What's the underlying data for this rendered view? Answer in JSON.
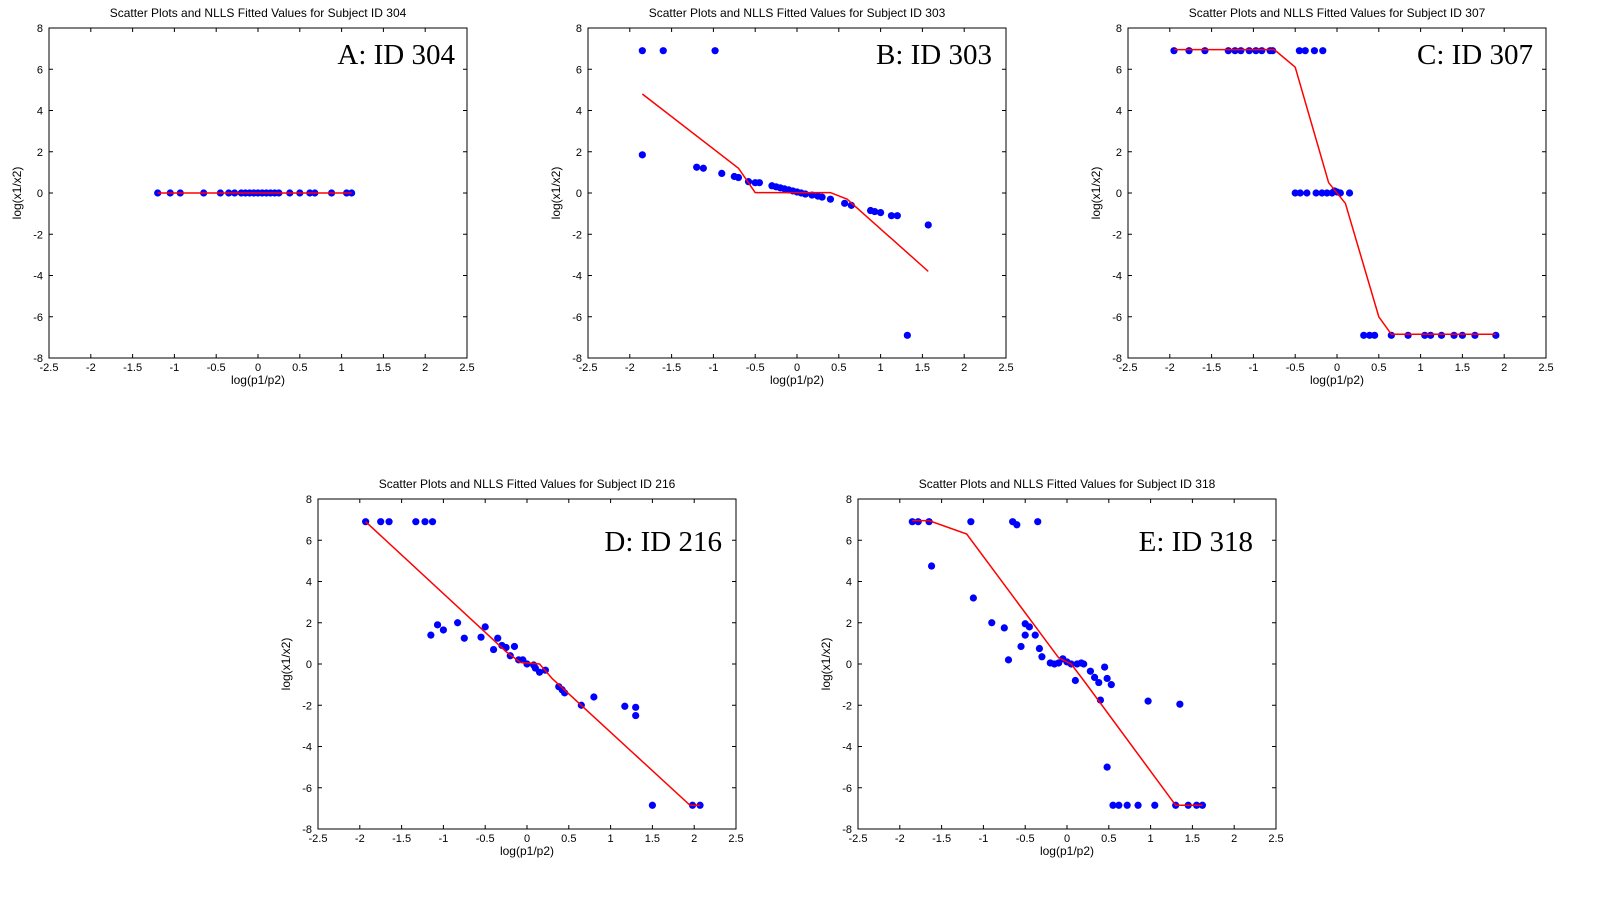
{
  "colors": {
    "points": "#0000ff",
    "fit_line": "#ff0000",
    "axes": "#000000",
    "background": "#ffffff"
  },
  "chart_data": [
    {
      "type": "scatter",
      "title": "Scatter Plots and NLLS Fitted Values for Subject ID 304",
      "panel_label": "A: ID 304",
      "xlabel": "log(p1/p2)",
      "ylabel": "log(x1/x2)",
      "xlim": [
        -2.5,
        2.5
      ],
      "ylim": [
        -8,
        8
      ],
      "xticks": [
        "-2.5",
        "-2",
        "-1.5",
        "-1",
        "-0.5",
        "0",
        "0.5",
        "1",
        "1.5",
        "2",
        "2.5"
      ],
      "yticks": [
        "-8",
        "-6",
        "-4",
        "-2",
        "0",
        "2",
        "4",
        "6",
        "8"
      ],
      "points": [
        [
          -1.2,
          0
        ],
        [
          -1.05,
          0
        ],
        [
          -0.93,
          0
        ],
        [
          -0.65,
          0
        ],
        [
          -0.45,
          0
        ],
        [
          -0.35,
          0
        ],
        [
          -0.28,
          0
        ],
        [
          -0.2,
          0
        ],
        [
          -0.15,
          0
        ],
        [
          -0.1,
          0
        ],
        [
          -0.05,
          0
        ],
        [
          0,
          0
        ],
        [
          0.05,
          0
        ],
        [
          0.1,
          0
        ],
        [
          0.15,
          0
        ],
        [
          0.2,
          0
        ],
        [
          0.25,
          0
        ],
        [
          0.38,
          0
        ],
        [
          0.5,
          0
        ],
        [
          0.62,
          0
        ],
        [
          0.68,
          0
        ],
        [
          0.88,
          0
        ],
        [
          1.06,
          0
        ],
        [
          1.12,
          0
        ]
      ],
      "fit_line": [
        [
          -1.2,
          0
        ],
        [
          1.12,
          0
        ]
      ]
    },
    {
      "type": "scatter",
      "title": "Scatter Plots and NLLS Fitted Values for Subject ID 303",
      "panel_label": "B: ID 303",
      "xlabel": "log(p1/p2)",
      "ylabel": "log(x1/x2)",
      "xlim": [
        -2.5,
        2.5
      ],
      "ylim": [
        -8,
        8
      ],
      "xticks": [
        "-2.5",
        "-2",
        "-1.5",
        "-1",
        "-0.5",
        "0",
        "0.5",
        "1",
        "1.5",
        "2",
        "2.5"
      ],
      "yticks": [
        "-8",
        "-6",
        "-4",
        "-2",
        "0",
        "2",
        "4",
        "6",
        "8"
      ],
      "points": [
        [
          -1.85,
          6.9
        ],
        [
          -1.6,
          6.9
        ],
        [
          -0.98,
          6.9
        ],
        [
          -1.85,
          1.85
        ],
        [
          -1.2,
          1.25
        ],
        [
          -1.12,
          1.2
        ],
        [
          -0.9,
          0.95
        ],
        [
          -0.75,
          0.8
        ],
        [
          -0.7,
          0.75
        ],
        [
          -0.58,
          0.55
        ],
        [
          -0.5,
          0.5
        ],
        [
          -0.45,
          0.5
        ],
        [
          -0.3,
          0.35
        ],
        [
          -0.25,
          0.3
        ],
        [
          -0.2,
          0.25
        ],
        [
          -0.15,
          0.2
        ],
        [
          -0.1,
          0.15
        ],
        [
          -0.05,
          0.1
        ],
        [
          0,
          0.05
        ],
        [
          0.05,
          0.0
        ],
        [
          0.1,
          -0.05
        ],
        [
          0.18,
          -0.1
        ],
        [
          0.25,
          -0.15
        ],
        [
          0.3,
          -0.2
        ],
        [
          0.4,
          -0.3
        ],
        [
          0.57,
          -0.5
        ],
        [
          0.65,
          -0.6
        ],
        [
          0.88,
          -0.85
        ],
        [
          0.93,
          -0.9
        ],
        [
          1.0,
          -0.95
        ],
        [
          1.13,
          -1.1
        ],
        [
          1.2,
          -1.1
        ],
        [
          1.32,
          -6.9
        ],
        [
          1.57,
          -1.55
        ]
      ],
      "fit_line": [
        [
          -1.85,
          4.8
        ],
        [
          -0.7,
          1.2
        ],
        [
          -0.5,
          0.02
        ],
        [
          0.4,
          0.02
        ],
        [
          0.6,
          -0.3
        ],
        [
          1.57,
          -3.8
        ]
      ]
    },
    {
      "type": "scatter",
      "title": "Scatter Plots and NLLS Fitted Values for Subject ID 307",
      "panel_label": "C: ID 307",
      "xlabel": "log(p1/p2)",
      "ylabel": "log(x1/x2)",
      "xlim": [
        -2.5,
        2.5
      ],
      "ylim": [
        -8,
        8
      ],
      "xticks": [
        "-2.5",
        "-2",
        "-1.5",
        "-1",
        "-0.5",
        "0",
        "0.5",
        "1",
        "1.5",
        "2",
        "2.5"
      ],
      "yticks": [
        "-8",
        "-6",
        "-4",
        "-2",
        "0",
        "2",
        "4",
        "6",
        "8"
      ],
      "points": [
        [
          -1.95,
          6.9
        ],
        [
          -1.77,
          6.9
        ],
        [
          -1.58,
          6.9
        ],
        [
          -1.3,
          6.9
        ],
        [
          -1.22,
          6.9
        ],
        [
          -1.15,
          6.9
        ],
        [
          -1.05,
          6.9
        ],
        [
          -0.97,
          6.9
        ],
        [
          -0.9,
          6.9
        ],
        [
          -0.8,
          6.9
        ],
        [
          -0.77,
          6.9
        ],
        [
          -0.45,
          6.9
        ],
        [
          -0.38,
          6.9
        ],
        [
          -0.27,
          6.9
        ],
        [
          -0.17,
          6.9
        ],
        [
          -0.5,
          0
        ],
        [
          -0.44,
          0
        ],
        [
          -0.36,
          0
        ],
        [
          -0.25,
          0
        ],
        [
          -0.18,
          0
        ],
        [
          -0.12,
          0
        ],
        [
          -0.06,
          0
        ],
        [
          -0.03,
          0.1
        ],
        [
          0,
          0.05
        ],
        [
          0.04,
          0
        ],
        [
          0.15,
          0
        ],
        [
          0.32,
          -6.9
        ],
        [
          0.39,
          -6.9
        ],
        [
          0.45,
          -6.9
        ],
        [
          0.65,
          -6.9
        ],
        [
          0.85,
          -6.9
        ],
        [
          1.05,
          -6.9
        ],
        [
          1.12,
          -6.9
        ],
        [
          1.25,
          -6.9
        ],
        [
          1.4,
          -6.9
        ],
        [
          1.5,
          -6.9
        ],
        [
          1.65,
          -6.9
        ],
        [
          1.9,
          -6.9
        ]
      ],
      "fit_line": [
        [
          -1.95,
          6.95
        ],
        [
          -0.75,
          6.95
        ],
        [
          -0.5,
          6.1
        ],
        [
          -0.1,
          0.5
        ],
        [
          0.1,
          -0.5
        ],
        [
          0.5,
          -6.0
        ],
        [
          0.65,
          -6.85
        ],
        [
          1.9,
          -6.85
        ]
      ]
    },
    {
      "type": "scatter",
      "title": "Scatter Plots and NLLS Fitted Values for Subject ID 216",
      "panel_label": "D: ID 216",
      "xlabel": "log(p1/p2)",
      "ylabel": "log(x1/x2)",
      "xlim": [
        -2.5,
        2.5
      ],
      "ylim": [
        -8,
        8
      ],
      "xticks": [
        "-2.5",
        "-2",
        "-1.5",
        "-1",
        "-0.5",
        "0",
        "0.5",
        "1",
        "1.5",
        "2",
        "2.5"
      ],
      "yticks": [
        "-8",
        "-6",
        "-4",
        "-2",
        "0",
        "2",
        "4",
        "6",
        "8"
      ],
      "points": [
        [
          -1.93,
          6.9
        ],
        [
          -1.75,
          6.9
        ],
        [
          -1.65,
          6.9
        ],
        [
          -1.33,
          6.9
        ],
        [
          -1.22,
          6.9
        ],
        [
          -1.13,
          6.9
        ],
        [
          -1.15,
          1.4
        ],
        [
          -1.07,
          1.9
        ],
        [
          -1.0,
          1.65
        ],
        [
          -0.83,
          2.0
        ],
        [
          -0.75,
          1.25
        ],
        [
          -0.55,
          1.3
        ],
        [
          -0.5,
          1.8
        ],
        [
          -0.4,
          0.7
        ],
        [
          -0.35,
          1.25
        ],
        [
          -0.3,
          0.9
        ],
        [
          -0.25,
          0.8
        ],
        [
          -0.2,
          0.4
        ],
        [
          -0.15,
          0.85
        ],
        [
          -0.1,
          0.2
        ],
        [
          -0.05,
          0.2
        ],
        [
          0,
          0.0
        ],
        [
          0.08,
          -0.05
        ],
        [
          0.1,
          -0.2
        ],
        [
          0.15,
          -0.4
        ],
        [
          0.22,
          -0.3
        ],
        [
          0.38,
          -1.1
        ],
        [
          0.42,
          -1.25
        ],
        [
          0.45,
          -1.4
        ],
        [
          0.65,
          -2.0
        ],
        [
          0.8,
          -1.6
        ],
        [
          1.17,
          -2.05
        ],
        [
          1.3,
          -2.1
        ],
        [
          1.3,
          -2.5
        ],
        [
          1.5,
          -6.85
        ],
        [
          1.98,
          -6.85
        ],
        [
          2.07,
          -6.85
        ]
      ],
      "fit_line": [
        [
          -1.93,
          6.9
        ],
        [
          -0.25,
          0.6
        ],
        [
          -0.08,
          0.08
        ],
        [
          0.15,
          0.0
        ],
        [
          0.3,
          -0.7
        ],
        [
          1.95,
          -6.85
        ],
        [
          2.07,
          -6.85
        ]
      ]
    },
    {
      "type": "scatter",
      "title": "Scatter Plots and NLLS Fitted Values for Subject ID 318",
      "panel_label": "E: ID 318",
      "xlabel": "log(p1/p2)",
      "ylabel": "log(x1/x2)",
      "xlim": [
        -2.5,
        2.5
      ],
      "ylim": [
        -8,
        8
      ],
      "xticks": [
        "-2.5",
        "-2",
        "-1.5",
        "-1",
        "-0.5",
        "0",
        "0.5",
        "1",
        "1.5",
        "2",
        "2.5"
      ],
      "yticks": [
        "-8",
        "-6",
        "-4",
        "-2",
        "0",
        "2",
        "4",
        "6",
        "8"
      ],
      "points": [
        [
          -1.85,
          6.9
        ],
        [
          -1.78,
          6.9
        ],
        [
          -1.65,
          6.9
        ],
        [
          -1.15,
          6.9
        ],
        [
          -0.65,
          6.9
        ],
        [
          -0.6,
          6.75
        ],
        [
          -0.35,
          6.9
        ],
        [
          -1.62,
          4.75
        ],
        [
          -1.12,
          3.2
        ],
        [
          -0.9,
          2.0
        ],
        [
          -0.75,
          1.75
        ],
        [
          -0.7,
          0.2
        ],
        [
          -0.55,
          0.85
        ],
        [
          -0.5,
          1.95
        ],
        [
          -0.5,
          1.4
        ],
        [
          -0.45,
          1.8
        ],
        [
          -0.38,
          1.4
        ],
        [
          -0.33,
          0.75
        ],
        [
          -0.3,
          0.35
        ],
        [
          -0.2,
          0.05
        ],
        [
          -0.15,
          0.0
        ],
        [
          -0.1,
          0.05
        ],
        [
          -0.05,
          0.25
        ],
        [
          0,
          0.1
        ],
        [
          0.05,
          0.0
        ],
        [
          0.1,
          -0.8
        ],
        [
          0.12,
          0.0
        ],
        [
          0.17,
          0.05
        ],
        [
          0.2,
          0.0
        ],
        [
          0.28,
          -0.35
        ],
        [
          0.33,
          -0.65
        ],
        [
          0.38,
          -0.9
        ],
        [
          0.4,
          -1.75
        ],
        [
          0.45,
          -0.15
        ],
        [
          0.48,
          -0.7
        ],
        [
          0.48,
          -5.0
        ],
        [
          0.53,
          -1.0
        ],
        [
          0.55,
          -6.85
        ],
        [
          0.62,
          -6.85
        ],
        [
          0.72,
          -6.85
        ],
        [
          0.85,
          -6.85
        ],
        [
          0.97,
          -1.8
        ],
        [
          1.05,
          -6.85
        ],
        [
          1.3,
          -6.85
        ],
        [
          1.35,
          -1.95
        ],
        [
          1.45,
          -6.85
        ],
        [
          1.55,
          -6.85
        ],
        [
          1.62,
          -6.85
        ]
      ],
      "fit_line": [
        [
          -1.85,
          6.95
        ],
        [
          -1.65,
          6.95
        ],
        [
          -1.2,
          6.3
        ],
        [
          -0.1,
          0.3
        ],
        [
          0.05,
          0.0
        ],
        [
          0.2,
          -0.8
        ],
        [
          1.3,
          -6.85
        ],
        [
          1.62,
          -6.85
        ]
      ]
    }
  ]
}
